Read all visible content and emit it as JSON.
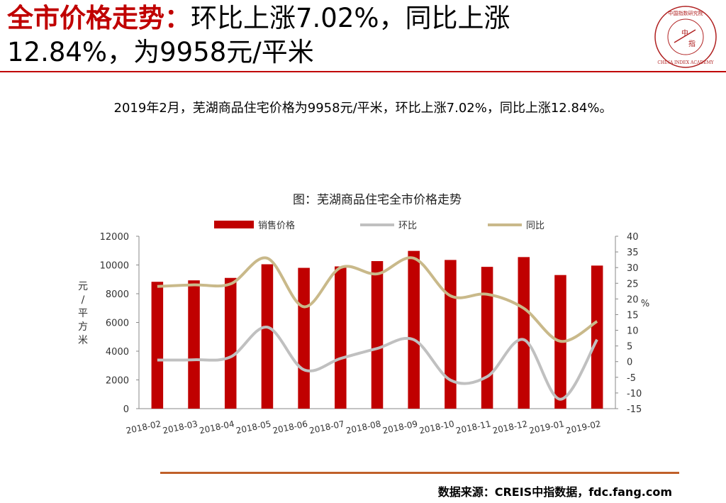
{
  "header": {
    "title_highlight": "全市价格走势：",
    "title_line1_rest": "环比上涨7.02%，同比上涨",
    "title_line2": "12.84%，为9958元/平米",
    "summary": "2019年2月，芜湖商品住宅价格为9958元/平米，环比上涨7.02%，同比上涨12.84%。"
  },
  "logo": {
    "top_text": "中国指数研究院",
    "bottom_text": "CHINA INDEX ACADEMY",
    "center_top": "中",
    "center_bottom": "指"
  },
  "chart_data": {
    "type": "bar",
    "title": "图：芜湖商品住宅全市价格走势",
    "categories": [
      "2018-02",
      "2018-03",
      "2018-04",
      "2018-05",
      "2018-06",
      "2018-07",
      "2018-08",
      "2018-09",
      "2018-10",
      "2018-11",
      "2018-12",
      "2019-01",
      "2019-02"
    ],
    "series": [
      {
        "name": "销售价格",
        "kind": "bar",
        "axis": "left",
        "values": [
          8830,
          8930,
          9100,
          10050,
          9800,
          9900,
          10270,
          10980,
          10350,
          9870,
          10550,
          9300,
          9958
        ]
      },
      {
        "name": "环比",
        "kind": "line",
        "axis": "right",
        "values": [
          0.5,
          0.6,
          1.5,
          11.0,
          -2.6,
          1.0,
          4.2,
          7.0,
          -5.9,
          -4.8,
          7.0,
          -12.0,
          7.02
        ]
      },
      {
        "name": "同比",
        "kind": "line",
        "axis": "right",
        "values": [
          24.0,
          24.5,
          24.8,
          33.0,
          17.5,
          30.0,
          28.0,
          33.0,
          21.0,
          21.5,
          17.0,
          6.5,
          12.84
        ]
      }
    ],
    "left_axis": {
      "label": "元/平方米",
      "min": 0,
      "max": 12000,
      "ticks": [
        0,
        2000,
        4000,
        6000,
        8000,
        10000,
        12000
      ]
    },
    "right_axis": {
      "label": "%",
      "min": -15,
      "max": 40,
      "ticks": [
        -15,
        -10,
        -5,
        0,
        5,
        10,
        15,
        20,
        25,
        30,
        35,
        40
      ]
    },
    "colors": {
      "bar": "#c00000",
      "mom": "#c0c0c0",
      "yoy": "#c9b98a"
    },
    "legend_position": "top",
    "grid": false
  },
  "footer": {
    "source": "数据来源：CREIS中指数据，fdc.fang.com"
  }
}
